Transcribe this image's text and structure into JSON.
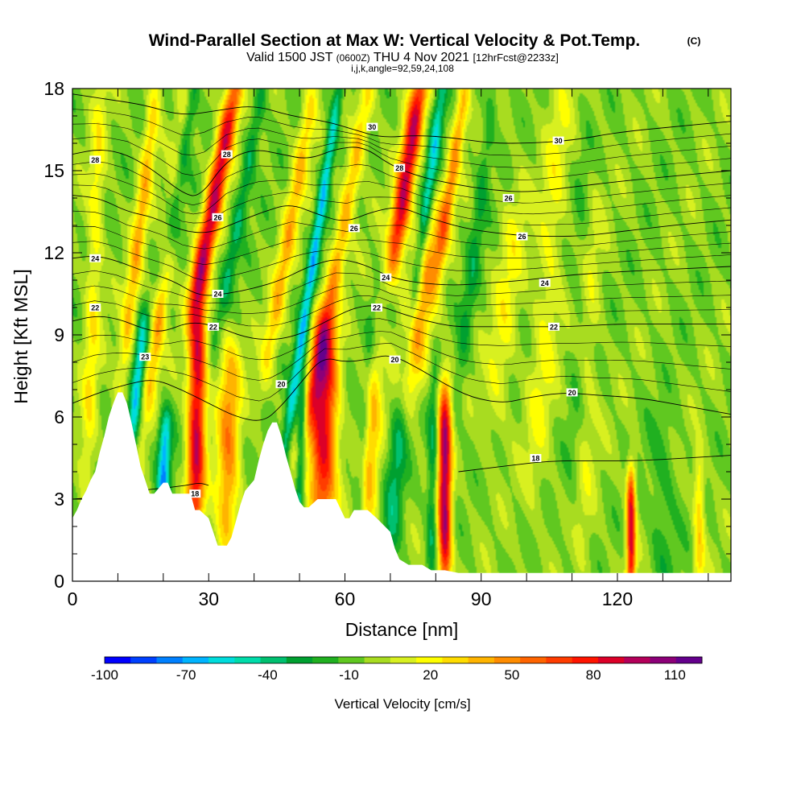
{
  "header": {
    "title": "Wind-Parallel Section at Max W: Vertical Velocity & Pot.Temp.",
    "copyright": "(C)",
    "valid_prefix": "Valid 1500 JST",
    "valid_z": "(0600Z)",
    "valid_date": "THU 4 Nov 2021",
    "forecast": "[12hrFcst@2233z]",
    "indices": "i,j,k,angle=92,59,24,108"
  },
  "chart_data": {
    "type": "heatmap",
    "xlabel": "Distance [nm]",
    "ylabel": "Height [Kft MSL]",
    "xlim": [
      0,
      145
    ],
    "ylim": [
      0,
      18
    ],
    "x_ticks": [
      0,
      30,
      60,
      90,
      120
    ],
    "x_tick_labels": [
      "0",
      "30",
      "60",
      "90",
      "120"
    ],
    "y_ticks": [
      0,
      3,
      6,
      9,
      12,
      15,
      18
    ],
    "y_tick_labels": [
      "0",
      "3",
      "6",
      "9",
      "12",
      "15",
      "18"
    ],
    "terrain": [
      [
        0,
        2.3
      ],
      [
        1,
        2.6
      ],
      [
        2,
        3.0
      ],
      [
        3,
        3.3
      ],
      [
        4,
        3.7
      ],
      [
        5,
        4.0
      ],
      [
        6,
        4.7
      ],
      [
        7,
        5.3
      ],
      [
        8,
        6.0
      ],
      [
        9,
        6.5
      ],
      [
        10,
        6.9
      ],
      [
        11,
        6.9
      ],
      [
        12,
        6.5
      ],
      [
        13,
        5.8
      ],
      [
        14,
        5.0
      ],
      [
        15,
        4.2
      ],
      [
        16,
        3.7
      ],
      [
        17,
        3.2
      ],
      [
        18,
        3.2
      ],
      [
        20,
        3.6
      ],
      [
        21,
        3.6
      ],
      [
        22,
        3.2
      ],
      [
        24,
        3.2
      ],
      [
        26,
        3.2
      ],
      [
        27,
        2.6
      ],
      [
        28,
        2.6
      ],
      [
        30,
        2.3
      ],
      [
        31,
        1.8
      ],
      [
        32,
        1.3
      ],
      [
        34,
        1.3
      ],
      [
        35,
        1.6
      ],
      [
        36,
        2.2
      ],
      [
        37,
        2.8
      ],
      [
        38,
        3.3
      ],
      [
        39,
        3.5
      ],
      [
        40,
        3.7
      ],
      [
        41,
        4.4
      ],
      [
        42,
        5.0
      ],
      [
        43,
        5.5
      ],
      [
        44,
        5.8
      ],
      [
        45,
        5.8
      ],
      [
        46,
        5.3
      ],
      [
        47,
        4.6
      ],
      [
        48,
        4.0
      ],
      [
        49,
        3.4
      ],
      [
        50,
        2.9
      ],
      [
        51,
        2.7
      ],
      [
        52,
        2.7
      ],
      [
        54,
        3.0
      ],
      [
        58,
        3.0
      ],
      [
        60,
        2.3
      ],
      [
        61,
        2.3
      ],
      [
        62,
        2.6
      ],
      [
        65,
        2.6
      ],
      [
        67,
        2.3
      ],
      [
        70,
        1.8
      ],
      [
        71,
        1.2
      ],
      [
        72,
        0.8
      ],
      [
        74,
        0.6
      ],
      [
        77,
        0.6
      ],
      [
        79,
        0.4
      ],
      [
        82,
        0.4
      ],
      [
        85,
        0.3
      ],
      [
        145,
        0.3
      ]
    ],
    "updrafts": [
      {
        "x": 3,
        "ytop": 18,
        "ybot": 2.5,
        "amp": 25,
        "w": 1.8,
        "slope": 0.1
      },
      {
        "x": 11,
        "ytop": 18,
        "ybot": 7.5,
        "amp": 40,
        "w": 1.6,
        "slope": 0.35
      },
      {
        "x": 17,
        "ytop": 18,
        "ybot": 7,
        "amp": 50,
        "w": 1.6,
        "slope": 0.4
      },
      {
        "x": 28,
        "ytop": 18,
        "ybot": 11,
        "amp": 95,
        "w": 2.0,
        "slope": 0.55
      },
      {
        "x": 27,
        "ytop": 10,
        "ybot": 2.5,
        "amp": 95,
        "w": 2.0,
        "slope": 0.05
      },
      {
        "x": 34,
        "ytop": 8,
        "ybot": 1.5,
        "amp": 50,
        "w": 2.5,
        "slope": 0.05
      },
      {
        "x": 43,
        "ytop": 18,
        "ybot": 8,
        "amp": 40,
        "w": 1.8,
        "slope": 0.5
      },
      {
        "x": 52,
        "ytop": 18,
        "ybot": 6,
        "amp": 45,
        "w": 1.8,
        "slope": 0.55
      },
      {
        "x": 55,
        "ytop": 9,
        "ybot": 2.7,
        "amp": 90,
        "w": 3.0,
        "slope": 0.05
      },
      {
        "x": 71,
        "ytop": 18,
        "ybot": 12,
        "amp": 95,
        "w": 2.0,
        "slope": 0.45
      },
      {
        "x": 74,
        "ytop": 13,
        "ybot": 7,
        "amp": 45,
        "w": 3.5,
        "slope": 0.4
      },
      {
        "x": 65,
        "ytop": 8,
        "ybot": 2.5,
        "amp": 40,
        "w": 2.2,
        "slope": 0.1
      },
      {
        "x": 81,
        "ytop": 18,
        "ybot": 12,
        "amp": 50,
        "w": 1.5,
        "slope": 0.45
      },
      {
        "x": 82,
        "ytop": 6.5,
        "ybot": 0.5,
        "amp": 105,
        "w": 1.5,
        "slope": 0.0
      },
      {
        "x": 93,
        "ytop": 14,
        "ybot": 6,
        "amp": 20,
        "w": 3.0,
        "slope": 0.3
      },
      {
        "x": 102,
        "ytop": 18,
        "ybot": 4,
        "amp": 20,
        "w": 3.0,
        "slope": 0.2
      },
      {
        "x": 112,
        "ytop": 14,
        "ybot": 1,
        "amp": 15,
        "w": 2.5,
        "slope": 0.1
      },
      {
        "x": 123,
        "ytop": 3.5,
        "ybot": 0.3,
        "amp": 90,
        "w": 1.0,
        "slope": 0.0
      },
      {
        "x": 138,
        "ytop": 4,
        "ybot": 0.3,
        "amp": 35,
        "w": 1.2,
        "slope": 0.0
      }
    ],
    "downdrafts": [
      {
        "x": 21,
        "ytop": 18,
        "ybot": 12,
        "amp": -60,
        "w": 1.5,
        "slope": 0.45
      },
      {
        "x": 13,
        "ytop": 9,
        "ybot": 5,
        "amp": -55,
        "w": 1.3,
        "slope": 0.3
      },
      {
        "x": 20,
        "ytop": 5.5,
        "ybot": 3.3,
        "amp": -65,
        "w": 1.4,
        "slope": 0.1
      },
      {
        "x": 33,
        "ytop": 18,
        "ybot": 10,
        "amp": -30,
        "w": 1.5,
        "slope": 0.55
      },
      {
        "x": 47,
        "ytop": 18,
        "ybot": 5,
        "amp": -60,
        "w": 1.2,
        "slope": 0.45
      },
      {
        "x": 50,
        "ytop": 7,
        "ybot": 3.0,
        "amp": -45,
        "w": 1.0,
        "slope": 0.1
      },
      {
        "x": 75,
        "ytop": 18,
        "ybot": 10,
        "amp": -50,
        "w": 1.3,
        "slope": 0.4
      },
      {
        "x": 63,
        "ytop": 9,
        "ybot": 2.5,
        "amp": -25,
        "w": 1.3,
        "slope": 0.2
      },
      {
        "x": 70,
        "ytop": 8,
        "ybot": 1.0,
        "amp": -30,
        "w": 2.0,
        "slope": 0.2
      },
      {
        "x": 79,
        "ytop": 7,
        "ybot": 0.5,
        "amp": -30,
        "w": 1.2,
        "slope": 0.05
      },
      {
        "x": 85,
        "ytop": 18,
        "ybot": 7,
        "amp": -20,
        "w": 1.5,
        "slope": 0.35
      },
      {
        "x": 110,
        "ytop": 16,
        "ybot": 1,
        "amp": -10,
        "w": 2.0,
        "slope": 0.1
      },
      {
        "x": 130,
        "ytop": 5,
        "ybot": 0.3,
        "amp": -15,
        "w": 3.0,
        "slope": 0.0
      }
    ],
    "background_w": -4,
    "contours": [
      {
        "level": "18",
        "points": [
          [
            0,
            3.0
          ],
          [
            8,
            3.1
          ],
          [
            14,
            3.3
          ],
          [
            20,
            3.4
          ],
          [
            25,
            3.5
          ],
          [
            28,
            3.6
          ],
          [
            30,
            3.5
          ]
        ]
      },
      {
        "level": "18",
        "points": [
          [
            85,
            4.0
          ],
          [
            95,
            4.2
          ],
          [
            105,
            4.4
          ],
          [
            115,
            4.4
          ],
          [
            125,
            4.4
          ],
          [
            135,
            4.5
          ],
          [
            145,
            4.6
          ]
        ]
      },
      {
        "level": "20",
        "points": [
          [
            0,
            6.5
          ],
          [
            6,
            6.9
          ],
          [
            12,
            7.2
          ],
          [
            18,
            7.4
          ],
          [
            24,
            7.0
          ],
          [
            30,
            6.5
          ],
          [
            36,
            6.0
          ],
          [
            42,
            5.8
          ],
          [
            46,
            6.4
          ],
          [
            50,
            7.2
          ],
          [
            55,
            8.2
          ],
          [
            60,
            8.0
          ],
          [
            65,
            8.1
          ],
          [
            70,
            8.3
          ],
          [
            76,
            7.8
          ],
          [
            82,
            7.2
          ],
          [
            88,
            6.7
          ],
          [
            95,
            6.5
          ],
          [
            100,
            6.7
          ],
          [
            108,
            6.9
          ],
          [
            115,
            6.8
          ],
          [
            125,
            6.7
          ],
          [
            135,
            6.4
          ],
          [
            145,
            6.1
          ]
        ]
      },
      {
        "level": "22",
        "points": [
          [
            0,
            9.5
          ],
          [
            5,
            9.7
          ],
          [
            10,
            9.6
          ],
          [
            16,
            9.2
          ],
          [
            20,
            9.1
          ],
          [
            26,
            9.5
          ],
          [
            32,
            9.3
          ],
          [
            38,
            8.9
          ],
          [
            44,
            8.8
          ],
          [
            50,
            9.0
          ],
          [
            56,
            9.5
          ],
          [
            62,
            10.0
          ],
          [
            67,
            10.1
          ],
          [
            72,
            9.8
          ],
          [
            78,
            9.5
          ],
          [
            84,
            9.3
          ],
          [
            90,
            9.3
          ],
          [
            100,
            9.3
          ],
          [
            110,
            9.3
          ],
          [
            120,
            9.4
          ],
          [
            130,
            9.4
          ],
          [
            145,
            9.4
          ]
        ]
      },
      {
        "level": "24",
        "points": [
          [
            0,
            11.8
          ],
          [
            5,
            11.9
          ],
          [
            10,
            11.7
          ],
          [
            16,
            11.3
          ],
          [
            22,
            11.0
          ],
          [
            28,
            10.4
          ],
          [
            34,
            10.5
          ],
          [
            40,
            10.7
          ],
          [
            46,
            11.0
          ],
          [
            52,
            11.5
          ],
          [
            58,
            11.8
          ],
          [
            64,
            11.6
          ],
          [
            70,
            11.1
          ],
          [
            76,
            10.9
          ],
          [
            84,
            10.8
          ],
          [
            92,
            10.9
          ],
          [
            100,
            11.0
          ],
          [
            110,
            11.2
          ],
          [
            120,
            11.3
          ],
          [
            132,
            11.4
          ],
          [
            145,
            11.5
          ]
        ]
      },
      {
        "level": "26",
        "points": [
          [
            0,
            14.1
          ],
          [
            6,
            14.0
          ],
          [
            12,
            13.5
          ],
          [
            18,
            13.3
          ],
          [
            24,
            12.8
          ],
          [
            30,
            12.7
          ],
          [
            36,
            13.1
          ],
          [
            42,
            13.5
          ],
          [
            48,
            13.8
          ],
          [
            54,
            13.4
          ],
          [
            60,
            13.1
          ],
          [
            66,
            13.5
          ],
          [
            72,
            13.7
          ],
          [
            78,
            13.3
          ],
          [
            86,
            12.9
          ],
          [
            94,
            12.7
          ],
          [
            102,
            12.6
          ],
          [
            112,
            12.6
          ],
          [
            122,
            12.8
          ],
          [
            132,
            13.0
          ],
          [
            145,
            13.2
          ]
        ]
      },
      {
        "level": "28",
        "points": [
          [
            0,
            15.6
          ],
          [
            6,
            15.8
          ],
          [
            12,
            15.6
          ],
          [
            18,
            15.0
          ],
          [
            24,
            14.2
          ],
          [
            28,
            14.0
          ],
          [
            34,
            15.4
          ],
          [
            40,
            15.8
          ],
          [
            46,
            15.6
          ],
          [
            52,
            15.4
          ],
          [
            58,
            15.8
          ],
          [
            64,
            15.9
          ],
          [
            70,
            15.2
          ],
          [
            76,
            14.8
          ],
          [
            84,
            14.5
          ],
          [
            92,
            14.3
          ],
          [
            100,
            14.2
          ],
          [
            110,
            14.4
          ],
          [
            120,
            14.6
          ],
          [
            132,
            14.8
          ],
          [
            145,
            15.0
          ]
        ]
      },
      {
        "level": "30",
        "points": [
          [
            0,
            17.8
          ],
          [
            8,
            17.6
          ],
          [
            16,
            17.4
          ],
          [
            24,
            17.0
          ],
          [
            32,
            17.2
          ],
          [
            40,
            17.4
          ],
          [
            48,
            17.0
          ],
          [
            56,
            16.8
          ],
          [
            62,
            16.5
          ],
          [
            68,
            16.2
          ],
          [
            76,
            16.3
          ],
          [
            84,
            16.2
          ],
          [
            92,
            16.0
          ],
          [
            100,
            16.0
          ],
          [
            110,
            16.1
          ],
          [
            120,
            16.4
          ],
          [
            132,
            16.6
          ],
          [
            145,
            16.8
          ]
        ]
      }
    ],
    "contour_labels": [
      {
        "text": "28",
        "x": 5,
        "y": 15.4
      },
      {
        "text": "28",
        "x": 34,
        "y": 15.6
      },
      {
        "text": "30",
        "x": 66,
        "y": 16.6
      },
      {
        "text": "30",
        "x": 107,
        "y": 16.1
      },
      {
        "text": "28",
        "x": 72,
        "y": 15.1
      },
      {
        "text": "26",
        "x": 96,
        "y": 14.0
      },
      {
        "text": "26",
        "x": 32,
        "y": 13.3
      },
      {
        "text": "26",
        "x": 62,
        "y": 12.9
      },
      {
        "text": "26",
        "x": 99,
        "y": 12.6
      },
      {
        "text": "24",
        "x": 5,
        "y": 11.8
      },
      {
        "text": "24",
        "x": 69,
        "y": 11.1
      },
      {
        "text": "24",
        "x": 104,
        "y": 10.9
      },
      {
        "text": "24",
        "x": 32,
        "y": 10.5
      },
      {
        "text": "22",
        "x": 5,
        "y": 10.0
      },
      {
        "text": "22",
        "x": 67,
        "y": 10.0
      },
      {
        "text": "22",
        "x": 31,
        "y": 9.3
      },
      {
        "text": "22",
        "x": 106,
        "y": 9.3
      },
      {
        "text": "23",
        "x": 16,
        "y": 8.2
      },
      {
        "text": "20",
        "x": 71,
        "y": 8.1
      },
      {
        "text": "20",
        "x": 46,
        "y": 7.2
      },
      {
        "text": "20",
        "x": 110,
        "y": 6.9
      },
      {
        "text": "18",
        "x": 102,
        "y": 4.5
      },
      {
        "text": "18",
        "x": 27,
        "y": 3.2
      }
    ]
  },
  "colorbar": {
    "title": "Vertical Velocity [cm/s]",
    "tick_labels": [
      "-100",
      "-70",
      "-40",
      "-10",
      "20",
      "50",
      "80",
      "110"
    ],
    "tick_values": [
      -100,
      -70,
      -40,
      -10,
      20,
      50,
      80,
      110
    ],
    "range": [
      -100,
      120
    ],
    "colors": [
      "#0000ff",
      "#0040ff",
      "#0080ff",
      "#00b4ff",
      "#00dcdc",
      "#00dcaa",
      "#00c070",
      "#00a030",
      "#20b020",
      "#60c820",
      "#a8dc20",
      "#d8f020",
      "#ffff00",
      "#ffdc00",
      "#ffb400",
      "#ff8c00",
      "#ff6400",
      "#ff3c00",
      "#ff1400",
      "#dc0028",
      "#b4005a",
      "#8c0078",
      "#64008c"
    ]
  }
}
